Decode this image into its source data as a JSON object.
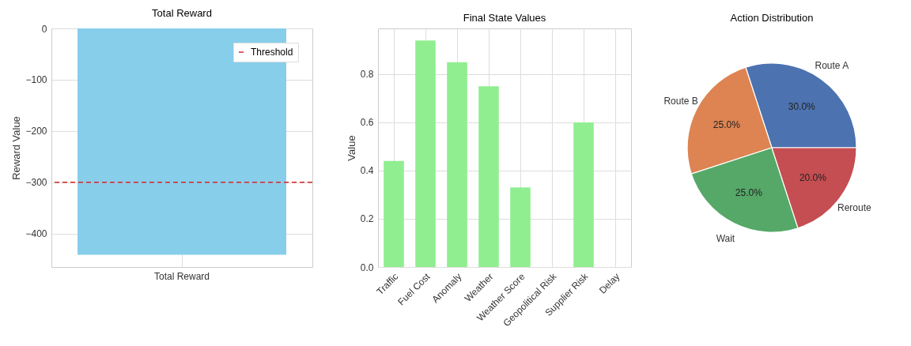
{
  "chart_data": [
    {
      "type": "bar",
      "title": "Total Reward",
      "ylabel": "Reward Value",
      "categories": [
        "Total Reward"
      ],
      "values": [
        -441
      ],
      "color": "#87ceeb",
      "ylim": [
        -465,
        0
      ],
      "yticks": [
        0,
        {
          "value": -100,
          "label": "−100"
        },
        {
          "value": -200,
          "label": "−200"
        },
        {
          "value": -300,
          "label": "−300"
        },
        {
          "value": -400,
          "label": "−400"
        }
      ],
      "grid": true,
      "legend": "top right",
      "ref_lines": [
        {
          "axis": "y",
          "value": -300,
          "label": "Threshold",
          "color": "#d62728",
          "line_style": "dashed"
        }
      ]
    },
    {
      "type": "bar",
      "title": "Final State Values",
      "ylabel": "Value",
      "categories": [
        "Traffic",
        "Fuel Cost",
        "Anomaly",
        "Weather",
        "Weather Score",
        "Geopolitical Risk",
        "Supplier Risk",
        "Delay"
      ],
      "values": [
        0.44,
        0.94,
        0.85,
        0.75,
        0.33,
        0,
        0.6,
        0
      ],
      "color": "#90ee90",
      "ylim": [
        0,
        0.99
      ],
      "yticks": [
        {
          "value": 0,
          "label": "0.0"
        },
        {
          "value": 0.2,
          "label": "0.2"
        },
        {
          "value": 0.4,
          "label": "0.4"
        },
        {
          "value": 0.6,
          "label": "0.6"
        },
        {
          "value": 0.8,
          "label": "0.8"
        }
      ],
      "grid": true
    },
    {
      "type": "pie",
      "title": "Action Distribution",
      "categories": [
        "Route A",
        "Route B",
        "Wait",
        "Reroute"
      ],
      "values": [
        30,
        25,
        25,
        20
      ],
      "colors": [
        "#4c72b0",
        "#dd8452",
        "#55a868",
        "#c44e52"
      ],
      "value_labels": [
        "30.0%",
        "25.0%",
        "25.0%",
        "20.0%"
      ]
    }
  ]
}
